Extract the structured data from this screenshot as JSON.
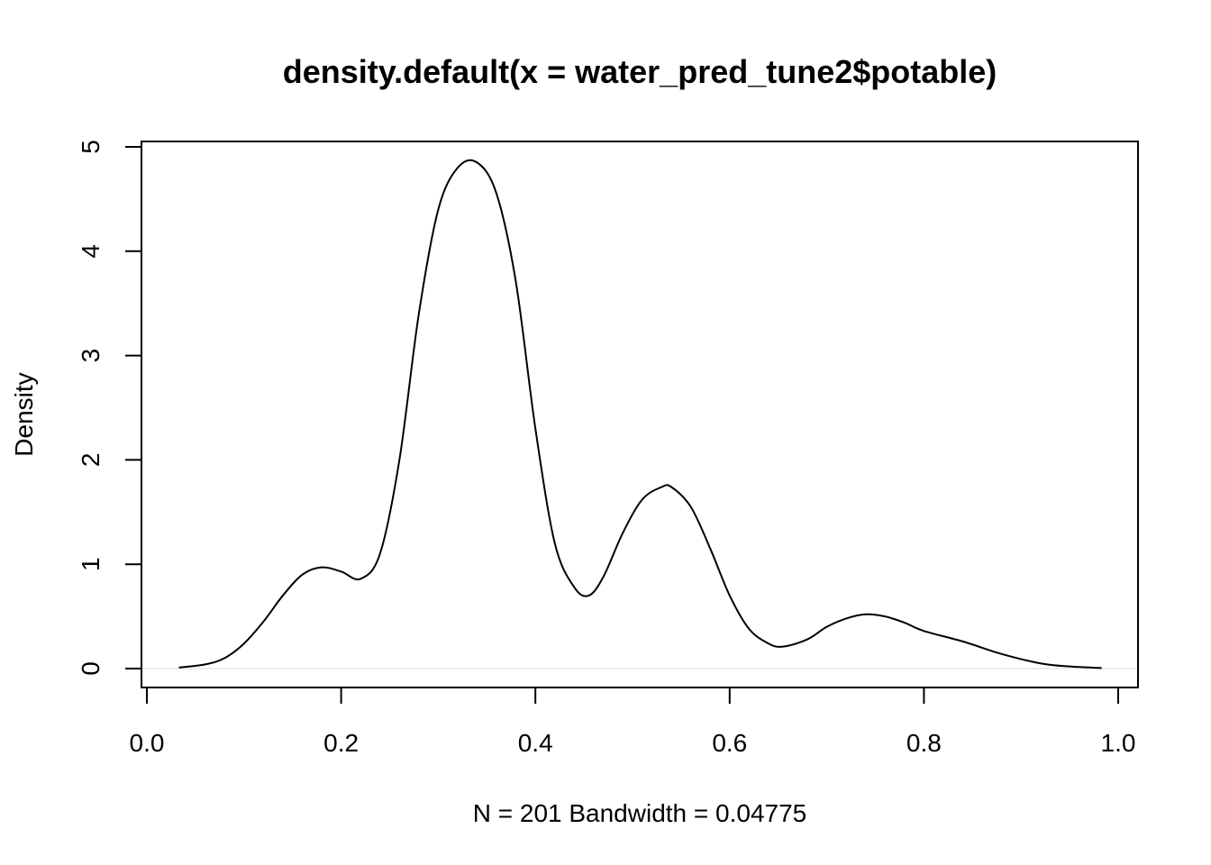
{
  "chart_data": {
    "type": "line",
    "title": "density.default(x = water_pred_tune2$potable)",
    "xlabel": "N = 201   Bandwidth = 0.04775",
    "ylabel": "Density",
    "xlim": [
      0.0,
      1.0
    ],
    "ylim": [
      0,
      5
    ],
    "x_ticks": [
      "0.0",
      "0.2",
      "0.4",
      "0.6",
      "0.8",
      "1.0"
    ],
    "y_ticks": [
      "0",
      "1",
      "2",
      "3",
      "4",
      "5"
    ],
    "grid": false,
    "legend": "none",
    "zero_line_color": "#e5e5e5",
    "series": [
      {
        "x": [
          0.033,
          0.06,
          0.08,
          0.1,
          0.12,
          0.14,
          0.16,
          0.18,
          0.2,
          0.22,
          0.24,
          0.26,
          0.28,
          0.3,
          0.32,
          0.34,
          0.36,
          0.38,
          0.4,
          0.42,
          0.44,
          0.455,
          0.47,
          0.49,
          0.51,
          0.53,
          0.54,
          0.56,
          0.58,
          0.6,
          0.62,
          0.64,
          0.655,
          0.68,
          0.7,
          0.72,
          0.74,
          0.76,
          0.78,
          0.8,
          0.84,
          0.88,
          0.92,
          0.95,
          0.983
        ],
        "y": [
          0.01,
          0.04,
          0.1,
          0.24,
          0.45,
          0.7,
          0.9,
          0.97,
          0.93,
          0.86,
          1.1,
          2.0,
          3.4,
          4.4,
          4.8,
          4.85,
          4.55,
          3.7,
          2.3,
          1.2,
          0.78,
          0.7,
          0.88,
          1.3,
          1.62,
          1.74,
          1.74,
          1.55,
          1.15,
          0.7,
          0.38,
          0.24,
          0.21,
          0.28,
          0.4,
          0.48,
          0.52,
          0.5,
          0.44,
          0.36,
          0.26,
          0.14,
          0.05,
          0.02,
          0.005
        ]
      }
    ]
  }
}
